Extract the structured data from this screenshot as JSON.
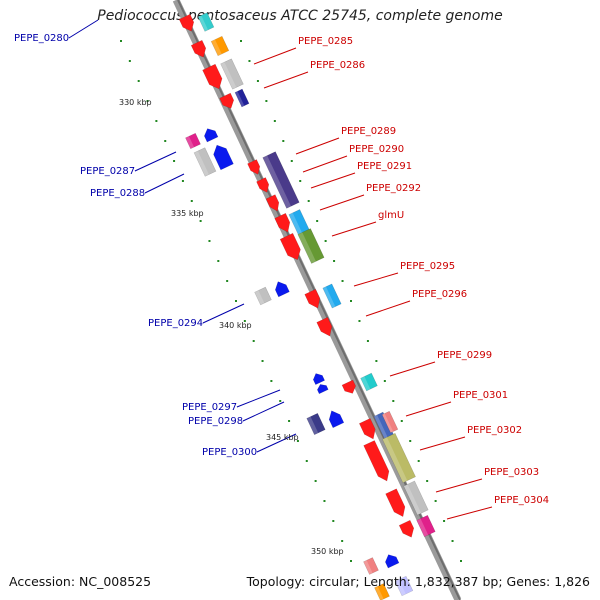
{
  "title": "Pediococcus pentosaceus ATCC 25745, complete genome",
  "footer": {
    "accession": "Accession: NC_008525",
    "summary": "Topology: circular; Length: 1,832,387 bp; Genes: 1,826"
  },
  "colors": {
    "forward_label": "#cc0000",
    "reverse_label": "#0000aa",
    "backbone": "#8a8a8a",
    "tick": "#228822"
  },
  "kbp_labels": [
    "330 kbp",
    "335 kbp",
    "340 kbp",
    "345 kbp",
    "350 kbp"
  ],
  "forward_labels": [
    "PEPE_0285",
    "PEPE_0286",
    "PEPE_0289",
    "PEPE_0290",
    "PEPE_0291",
    "PEPE_0292",
    "glmU",
    "PEPE_0295",
    "PEPE_0296",
    "PEPE_0299",
    "PEPE_0301",
    "PEPE_0302",
    "PEPE_0303",
    "PEPE_0304"
  ],
  "reverse_labels": [
    "PEPE_0280",
    "PEPE_0287",
    "PEPE_0288",
    "PEPE_0294",
    "PEPE_0297",
    "PEPE_0298",
    "PEPE_0300"
  ]
}
